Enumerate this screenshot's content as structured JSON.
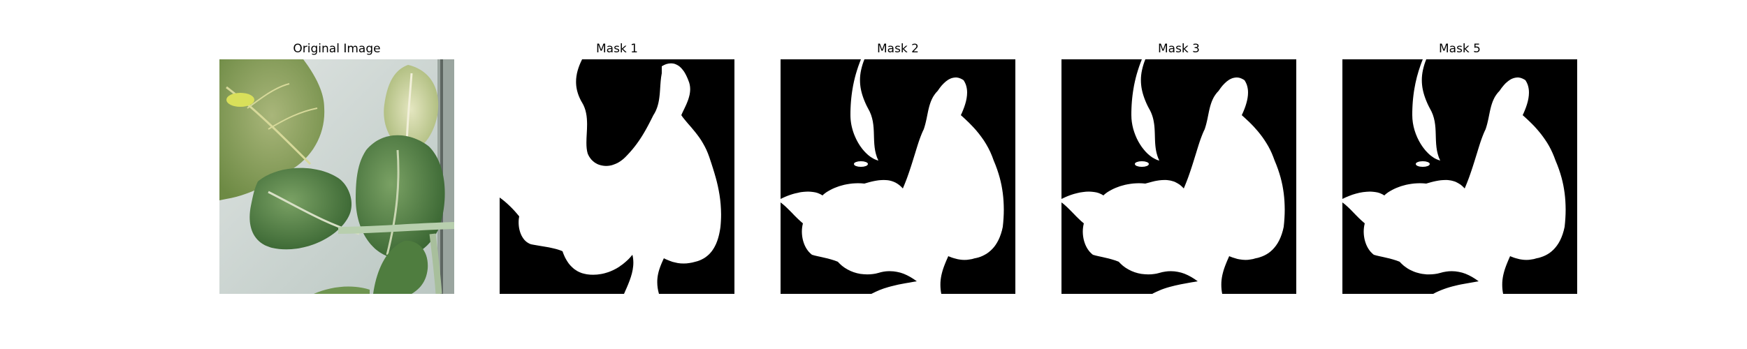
{
  "panels": [
    {
      "title": "Original Image",
      "kind": "photo"
    },
    {
      "title": "Mask 1",
      "kind": "mask"
    },
    {
      "title": "Mask 2",
      "kind": "mask"
    },
    {
      "title": "Mask 3",
      "kind": "mask"
    },
    {
      "title": "Mask 5",
      "kind": "mask"
    }
  ],
  "colors": {
    "page_background": "#ffffff",
    "mask_foreground": "#ffffff",
    "mask_background": "#000000",
    "photo_wall": "#c9d3cf",
    "leaf_dark": "#3f6b3a",
    "leaf_light": "#a9b37a"
  }
}
